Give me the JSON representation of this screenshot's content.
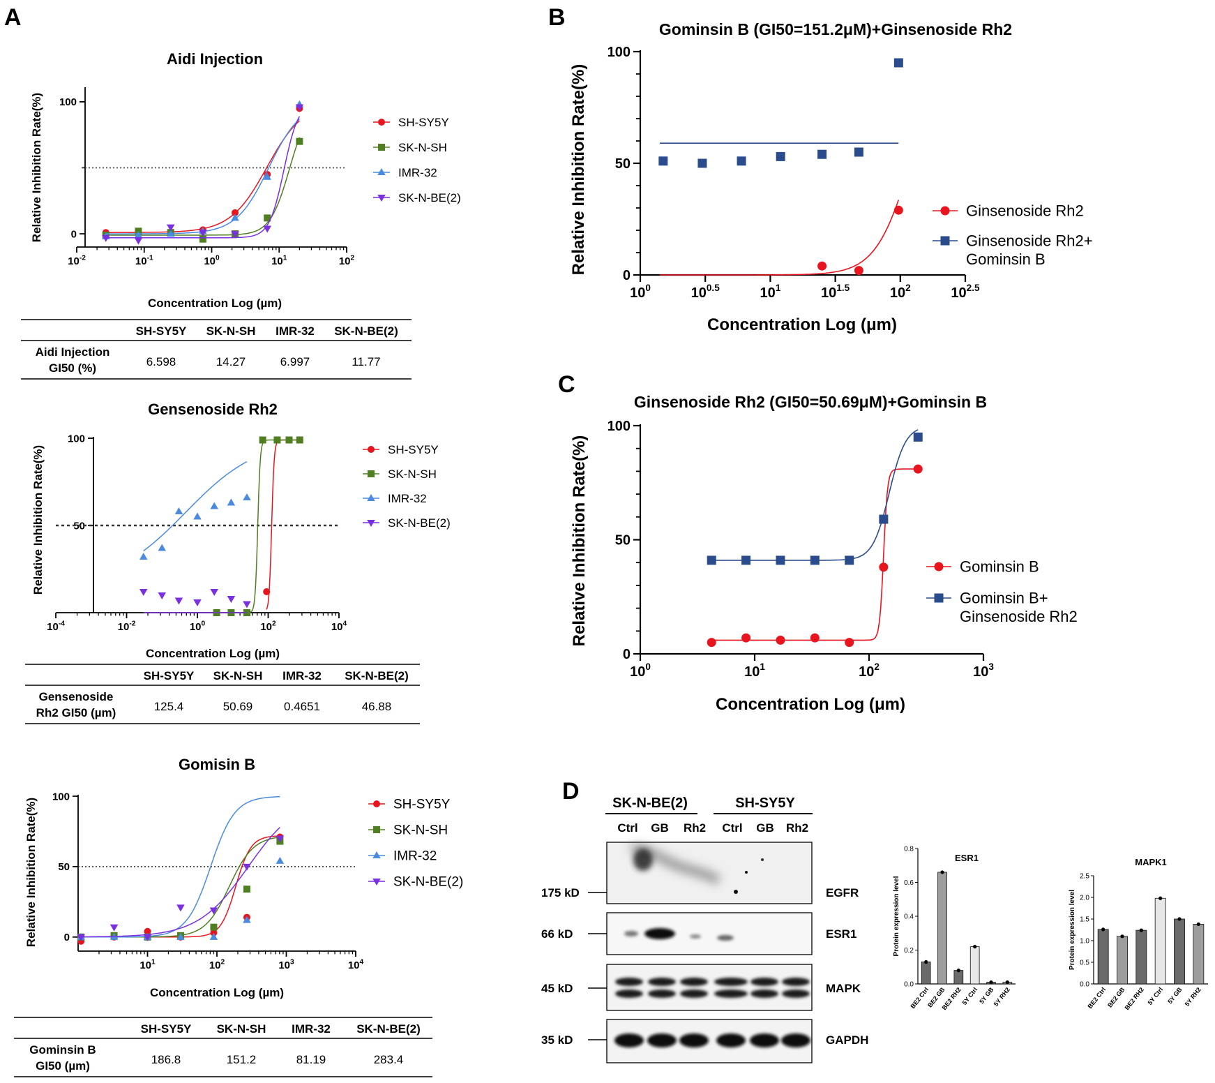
{
  "colors": {
    "red": "#e8141e",
    "green": "#4f7f20",
    "blue": "#4a8be0",
    "purple": "#7a2fe0",
    "navy": "#2a4c8c",
    "darkgray": "#6b6b6b",
    "midgray": "#9d9d9d",
    "lightgray": "#d9d9d9",
    "pale": "#e7e7e7"
  },
  "panels": {
    "A": "A",
    "B": "B",
    "C": "C",
    "D": "D"
  },
  "common": {
    "xlabel": "Concentration Log (µm)",
    "xlabelA1": "Concentration Log (µm)",
    "ylabel": "Relative Inhibition Rate(%)"
  },
  "chart_data": [
    {
      "id": "a1",
      "type": "line",
      "title": "Aidi Injection",
      "xlabel": "Concentration Log (µm)",
      "ylabel": "Relative Inhibition Rate(%)",
      "xscale": "log10",
      "xlim": [
        -2,
        2
      ],
      "xticks": [
        "-2",
        "-1",
        "0",
        "1",
        "2"
      ],
      "ylim": [
        -10,
        110
      ],
      "yticks": [
        "0",
        "100"
      ],
      "reference_line": 50,
      "legend": "right",
      "series": [
        {
          "name": "SH-SY5Y",
          "marker": "circle",
          "x": [
            0.027,
            0.082,
            0.247,
            0.741,
            2.22,
            6.67,
            20
          ],
          "y": [
            1,
            0,
            1,
            3,
            16,
            45,
            95
          ],
          "gi50": 6.598,
          "hill": 1.6,
          "top": 100,
          "bottom": 1
        },
        {
          "name": "SK-N-SH",
          "marker": "square",
          "x": [
            0.027,
            0.082,
            0.247,
            0.741,
            2.22,
            6.67,
            20
          ],
          "y": [
            -1,
            2,
            1,
            -4,
            0,
            12,
            70
          ],
          "gi50": 14.27,
          "hill": 3.0,
          "top": 100,
          "bottom": -1
        },
        {
          "name": "IMR-32",
          "marker": "triangle-up",
          "x": [
            0.027,
            0.082,
            0.247,
            0.741,
            2.22,
            6.67,
            20
          ],
          "y": [
            -2,
            -1,
            0,
            2,
            12,
            43,
            98
          ],
          "gi50": 6.997,
          "hill": 1.8,
          "top": 100,
          "bottom": 0
        },
        {
          "name": "SK-N-BE(2)",
          "marker": "triangle-down",
          "x": [
            0.027,
            0.082,
            0.247,
            0.741,
            2.22,
            6.67,
            20
          ],
          "y": [
            -3,
            -5,
            5,
            1,
            0,
            4,
            96
          ],
          "gi50": 11.77,
          "hill": 4.0,
          "top": 100,
          "bottom": -3
        }
      ],
      "table": {
        "headers": [
          "SH-SY5Y",
          "SK-N-SH",
          "IMR-32",
          "SK-N-BE(2)"
        ],
        "row_label": [
          "Aidi Injection",
          "GI50 (%)"
        ],
        "values": [
          "6.598",
          "14.27",
          "6.997",
          "11.77"
        ]
      }
    },
    {
      "id": "a2",
      "type": "line",
      "title": "Gensenoside Rh2",
      "xlabel": "Concentration Log (µm)",
      "ylabel": "Relative Inhibition Rate(%)",
      "xscale": "log10",
      "xlim": [
        -4,
        4
      ],
      "xticks": [
        "-4",
        "-2",
        "0",
        "2",
        "4"
      ],
      "ylim": [
        0,
        100
      ],
      "yticks": [
        "50",
        "100"
      ],
      "reference_line": 50,
      "legend": "right",
      "series": [
        {
          "name": "SH-SY5Y",
          "marker": "circle",
          "x": [
            90,
            180,
            390,
            780
          ],
          "y": [
            12,
            99,
            99,
            99
          ],
          "gi50": 125.4,
          "hill": 12,
          "top": 99,
          "bottom": 0
        },
        {
          "name": "SK-N-SH",
          "marker": "square",
          "x": [
            3.5,
            9,
            25,
            70,
            180,
            390,
            780
          ],
          "y": [
            0,
            0,
            0,
            99,
            99,
            99,
            99
          ],
          "gi50": 50.69,
          "hill": 12,
          "top": 99,
          "bottom": 0
        },
        {
          "name": "IMR-32",
          "marker": "triangle-up",
          "x": [
            0.03,
            0.1,
            0.3,
            1,
            3,
            9,
            25
          ],
          "y": [
            32,
            37,
            58,
            55,
            61,
            63,
            66
          ],
          "gi50": 0.4651,
          "hill": 0.42,
          "top": 100,
          "bottom": 15
        },
        {
          "name": "SK-N-BE(2)",
          "marker": "triangle-down",
          "x": [
            0.03,
            0.1,
            0.3,
            1,
            3,
            9,
            25
          ],
          "y": [
            12,
            10,
            7,
            6,
            12,
            8,
            5
          ],
          "gi50": 46.88,
          "hill": 12,
          "top": 99,
          "bottom": 0
        }
      ],
      "table": {
        "headers": [
          "SH-SY5Y",
          "SK-N-SH",
          "IMR-32",
          "SK-N-BE(2)"
        ],
        "row_label": [
          "Gensenoside",
          "Rh2 GI50 (µm)"
        ],
        "values": [
          "125.4",
          "50.69",
          "0.4651",
          "46.88"
        ]
      }
    },
    {
      "id": "a3",
      "type": "line",
      "title": "Gomisin  B",
      "xlabel": "Concentration Log (µm)",
      "ylabel": "Relative Inhibition Rate(%)",
      "xscale": "log10",
      "xlim": [
        0,
        4
      ],
      "xticks": [
        "1",
        "2",
        "3",
        "4"
      ],
      "ylim": [
        -10,
        100
      ],
      "yticks": [
        "0",
        "50",
        "100"
      ],
      "reference_line": 50,
      "legend": "right",
      "series": [
        {
          "name": "SH-SY5Y",
          "marker": "circle",
          "x": [
            1.1,
            3.3,
            10,
            30,
            90,
            270,
            810
          ],
          "y": [
            -3,
            0,
            4,
            0,
            3,
            14,
            71
          ],
          "gi50": 186.8,
          "hill": 4,
          "top": 72,
          "bottom": 0
        },
        {
          "name": "SK-N-SH",
          "marker": "square",
          "x": [
            1.1,
            3.3,
            10,
            30,
            90,
            270,
            810
          ],
          "y": [
            0,
            1,
            0,
            1,
            7,
            34,
            68
          ],
          "gi50": 151.2,
          "hill": 2.5,
          "top": 72,
          "bottom": 0
        },
        {
          "name": "IMR-32",
          "marker": "triangle-up",
          "x": [
            1.1,
            3.3,
            10,
            30,
            90,
            270,
            810
          ],
          "y": [
            0,
            0,
            0,
            0,
            0,
            12,
            54
          ],
          "gi50": 81.19,
          "hill": 2.5,
          "top": 100,
          "bottom": 0
        },
        {
          "name": "SK-N-BE(2)",
          "marker": "triangle-down",
          "x": [
            1.1,
            3.3,
            10,
            30,
            90,
            270,
            810
          ],
          "y": [
            0,
            7,
            0,
            21,
            19,
            50,
            70
          ],
          "gi50": 283.4,
          "hill": 1.2,
          "top": 100,
          "bottom": 0
        }
      ],
      "table": {
        "headers": [
          "SH-SY5Y",
          "SK-N-SH",
          "IMR-32",
          "SK-N-BE(2)"
        ],
        "row_label": [
          "Gominsin B",
          "GI50 (µm)"
        ],
        "values": [
          "186.8",
          "151.2",
          "81.19",
          "283.4"
        ]
      }
    },
    {
      "id": "b",
      "type": "line",
      "title": "Gominsin B (GI50=151.2μM)+Ginsenoside Rh2",
      "xlabel": "Concentration Log (μm)",
      "ylabel": "Relative Inhibition Rate(%)",
      "xscale": "log10",
      "xlim": [
        0,
        2.5
      ],
      "xticks": [
        "0",
        "0.5",
        "1",
        "1.5",
        "2",
        "2.5"
      ],
      "ylim": [
        0,
        100
      ],
      "yticks": [
        "0",
        "50",
        "100"
      ],
      "legend": "right",
      "series": [
        {
          "name": "Ginsenoside Rh2",
          "marker": "circle",
          "x": [
            25,
            48,
            97
          ],
          "y": [
            4,
            2,
            29
          ],
          "fit": "sigmoid",
          "gi50": 120,
          "hill": 3.2,
          "top": 100,
          "bottom": 0
        },
        {
          "name": "Ginsenoside Rh2+ Gominsin B",
          "marker": "square",
          "x": [
            1.5,
            3,
            6,
            12,
            25,
            48,
            97
          ],
          "y": [
            51,
            50,
            51,
            53,
            54,
            55,
            95
          ],
          "fit": "flat",
          "level": 59,
          "x_end": 97
        }
      ]
    },
    {
      "id": "c",
      "type": "line",
      "title": "Ginsenoside Rh2 (GI50=50.69μM)+Gominsin B",
      "xlabel": "Concentration Log (μm)",
      "ylabel": "Relative Inhibition Rate(%)",
      "xscale": "log10",
      "xlim": [
        0,
        3
      ],
      "xticks": [
        "0",
        "1",
        "2",
        "3"
      ],
      "ylim": [
        0,
        100
      ],
      "yticks": [
        "0",
        "50",
        "100"
      ],
      "legend": "right",
      "series": [
        {
          "name": "Gominsin B",
          "marker": "circle",
          "x": [
            4.2,
            8.4,
            16.8,
            33.6,
            67.2,
            134,
            268
          ],
          "y": [
            5,
            7,
            6,
            7,
            5,
            38,
            81
          ],
          "gi50": 134,
          "hill": 25,
          "top": 81,
          "bottom": 6
        },
        {
          "name": "Gominsin B+ Ginsenoside Rh2",
          "marker": "square",
          "x": [
            4.2,
            8.4,
            16.8,
            33.6,
            67.2,
            134,
            268
          ],
          "y": [
            41,
            41,
            41,
            41,
            41,
            59,
            95
          ],
          "gi50": 150,
          "hill": 6,
          "top": 100,
          "bottom": 41
        }
      ]
    },
    {
      "id": "d_esr1",
      "type": "bar",
      "title": "ESR1",
      "ylabel": "Protein expression level",
      "categories": [
        "BE2 Ctrl",
        "BE2 GB",
        "BE2 RH2",
        "5Y Ctrl",
        "5Y GB",
        "5Y RH2"
      ],
      "values": [
        0.13,
        0.66,
        0.08,
        0.22,
        0.01,
        0.01
      ],
      "ylim": [
        0,
        0.8
      ],
      "yticks": [
        "0.0",
        "0.2",
        "0.4",
        "0.6",
        "0.8"
      ]
    },
    {
      "id": "d_mapk1",
      "type": "bar",
      "title": "MAPK1",
      "ylabel": "Protein expression level",
      "categories": [
        "BE2 Ctrl",
        "BE2 GB",
        "BE2 RH2",
        "5Y Ctrl",
        "5Y GB",
        "5Y RH2"
      ],
      "values": [
        1.26,
        1.1,
        1.24,
        1.98,
        1.5,
        1.38
      ],
      "ylim": [
        0,
        2.5
      ],
      "yticks": [
        "0.0",
        "0.5",
        "1.0",
        "1.5",
        "2.0",
        "2.5"
      ]
    }
  ],
  "blot": {
    "groups": [
      "SK-N-BE(2)",
      "SH-SY5Y"
    ],
    "lanes": [
      "Ctrl",
      "GB",
      "Rh2",
      "Ctrl",
      "GB",
      "Rh2"
    ],
    "kd": [
      "175 kD",
      "66 kD",
      "45 kD",
      "35 kD"
    ],
    "proteins": [
      "EGFR",
      "ESR1",
      "MAPK",
      "GAPDH"
    ]
  }
}
